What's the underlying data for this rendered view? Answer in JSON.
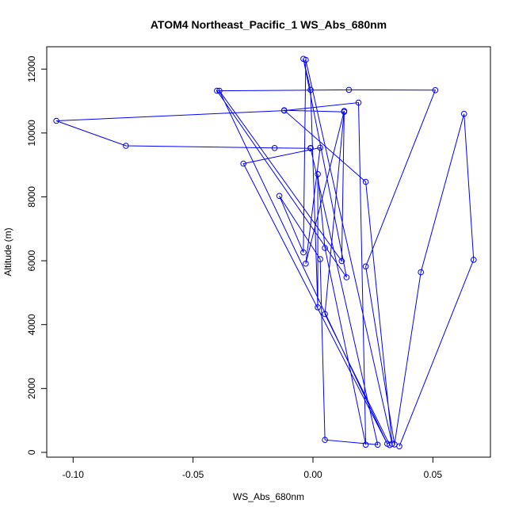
{
  "chart_data": {
    "type": "line",
    "title": "ATOM4 Northeast_Pacific_1 WS_Abs_680nm",
    "xlabel": "WS_Abs_680nm",
    "ylabel": "Altitude (m)",
    "xlim": [
      -0.111,
      0.074
    ],
    "ylim": [
      -150,
      12700
    ],
    "x_ticks": [
      -0.1,
      -0.05,
      0.0,
      0.05
    ],
    "x_tick_labels": [
      "-0.10",
      "-0.05",
      "0.00",
      "0.05"
    ],
    "y_ticks": [
      0,
      2000,
      4000,
      6000,
      8000,
      10000,
      12000
    ],
    "y_tick_labels": [
      "0",
      "2000",
      "4000",
      "6000",
      "8000",
      "10000",
      "12000"
    ],
    "color": "#0000ff",
    "series": [
      {
        "x": [
          0.036,
          0.067,
          0.063,
          0.045,
          0.034,
          0.022,
          0.051,
          0.015,
          -0.04,
          0.014,
          -0.004,
          -0.001,
          0.002,
          0.002,
          0.005,
          0.022,
          0.019,
          -0.012,
          -0.107,
          -0.078,
          -0.016,
          -0.001,
          -0.001,
          0.027,
          0.005,
          0.003,
          -0.014,
          -0.004,
          -0.003,
          0.033,
          0.022,
          -0.012,
          0.013,
          0.012,
          -0.039,
          0.031,
          -0.029,
          0.003,
          -0.003,
          0.013,
          0.005,
          0.032
        ],
        "y": [
          190,
          6030,
          10600,
          5640,
          250,
          5820,
          11340,
          11350,
          11320,
          5480,
          12320,
          11350,
          4540,
          8710,
          6400,
          240,
          10950,
          10700,
          10380,
          9600,
          9530,
          9520,
          9530,
          240,
          390,
          6050,
          8030,
          6260,
          12290,
          270,
          8470,
          10710,
          10660,
          5990,
          11320,
          270,
          9040,
          9540,
          5910,
          10690,
          4330,
          230
        ]
      }
    ]
  }
}
